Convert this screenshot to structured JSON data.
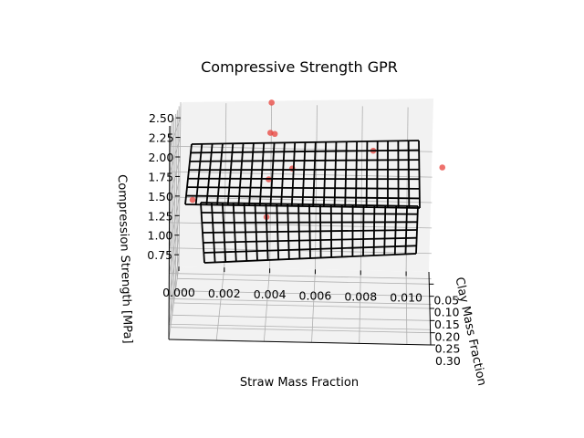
{
  "chart_data": {
    "type": "surface3d",
    "title": "Compressive Strength GPR",
    "xlabel": "Straw Mass Fraction",
    "ylabel": "Clay Mass Fraction",
    "zlabel": "Compression Strength [MPa]",
    "xlim": [
      0.0,
      0.011
    ],
    "ylim": [
      0.0,
      0.3
    ],
    "zlim": [
      0.6,
      2.7
    ],
    "x_ticks": [
      "0.000",
      "0.002",
      "0.004",
      "0.006",
      "0.008",
      "0.010"
    ],
    "y_ticks": [
      "0.05",
      "0.10",
      "0.15",
      "0.20",
      "0.25",
      "0.30"
    ],
    "z_ticks": [
      "0.75",
      "1.00",
      "1.25",
      "1.50",
      "1.75",
      "2.00",
      "2.25",
      "2.50"
    ],
    "grid": true,
    "surface": {
      "color": "#000000",
      "front_z": [
        1.75,
        1.9
      ],
      "back_z": [
        2.55,
        2.6
      ]
    },
    "points": [
      {
        "x": 0.004,
        "y": 0.0,
        "z": 2.72
      },
      {
        "x": 0.004,
        "y": 0.05,
        "z": 2.4
      },
      {
        "x": 0.0042,
        "y": 0.06,
        "z": 2.4
      },
      {
        "x": 0.005,
        "y": 0.1,
        "z": 2.05
      },
      {
        "x": 0.004,
        "y": 0.12,
        "z": 1.95
      },
      {
        "x": 0.0008,
        "y": 0.18,
        "z": 1.8
      },
      {
        "x": 0.004,
        "y": 0.22,
        "z": 1.7
      },
      {
        "x": 0.0085,
        "y": 0.08,
        "z": 2.25
      },
      {
        "x": 0.0115,
        "y": 0.1,
        "z": 2.1
      }
    ],
    "point_color": "#e8413b"
  }
}
